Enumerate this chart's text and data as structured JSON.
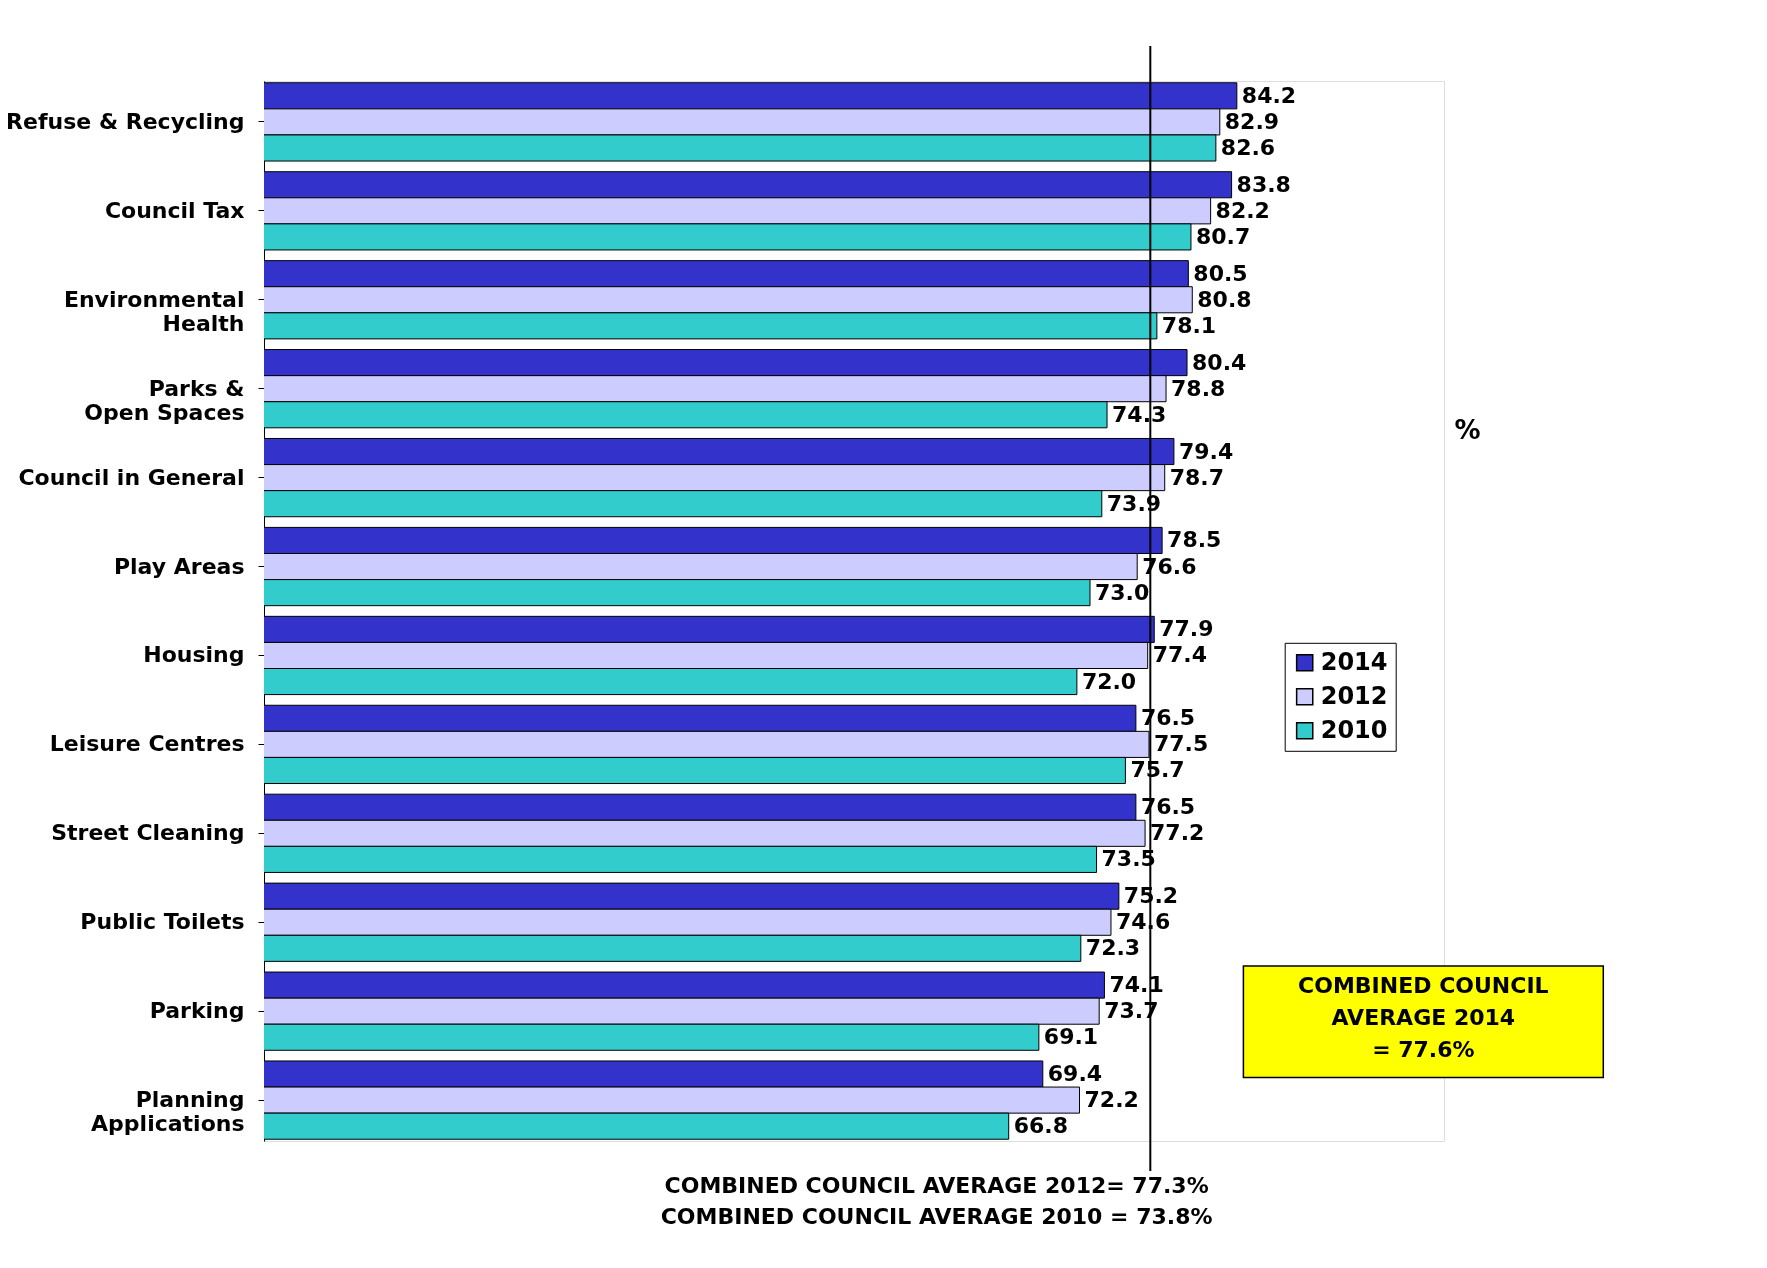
{
  "chart_data": {
    "type": "bar",
    "orientation": "horizontal",
    "categories": [
      "Refuse & Recycling",
      "Council Tax",
      "Environmental Health",
      "Parks & Open Spaces",
      "Council in General",
      "Play Areas",
      "Housing",
      "Leisure Centres",
      "Street Cleaning",
      "Public Toilets",
      "Parking",
      "Planning Applications"
    ],
    "series": [
      {
        "name": "2014",
        "color": "#3333cc",
        "values": [
          84.2,
          83.8,
          80.5,
          80.4,
          79.4,
          78.5,
          77.9,
          76.5,
          76.5,
          75.2,
          74.1,
          69.4
        ],
        "value_labels": [
          "84.2",
          "83.8",
          "80.5",
          "80.4",
          "79.4",
          "78.5",
          "77.9",
          "76.5",
          "76.5",
          "75.2",
          "74.1",
          "69.4"
        ]
      },
      {
        "name": "2012",
        "color": "#ccccff",
        "values": [
          82.9,
          82.2,
          80.8,
          78.8,
          78.7,
          76.6,
          77.4,
          77.5,
          77.2,
          74.6,
          73.7,
          72.2
        ],
        "value_labels": [
          "82.9",
          "82.2",
          "80.8",
          "78.8",
          "78.7",
          "76.6",
          "77.4",
          "77.5",
          "77.2",
          "74.6",
          "73.7",
          "72.2"
        ]
      },
      {
        "name": "2010",
        "color": "#33cccc",
        "values": [
          82.6,
          80.7,
          78.1,
          74.3,
          73.9,
          73.0,
          72.0,
          75.7,
          73.5,
          72.3,
          69.1,
          66.8
        ],
        "value_labels": [
          "82.6",
          "80.7",
          "78.1",
          "74.3",
          "73.9",
          "73.0",
          "72.0",
          "75.7",
          "73.5",
          "72.3",
          "69.1",
          "66.8"
        ]
      }
    ],
    "xlim": [
      10,
      100
    ],
    "ref_lines": [
      {
        "axis": "x",
        "value": 77.6,
        "color": "#000000"
      }
    ],
    "data_labels": true,
    "legend": "right",
    "tick_labels": "y",
    "annotations": [
      "%",
      "COMBINED COUNCIL AVERAGE 2014 = 77.6%",
      "COMBINED COUNCIL AVERAGE 2012= 77.3%",
      "COMBINED COUNCIL AVERAGE 2010 = 73.8%"
    ]
  }
}
